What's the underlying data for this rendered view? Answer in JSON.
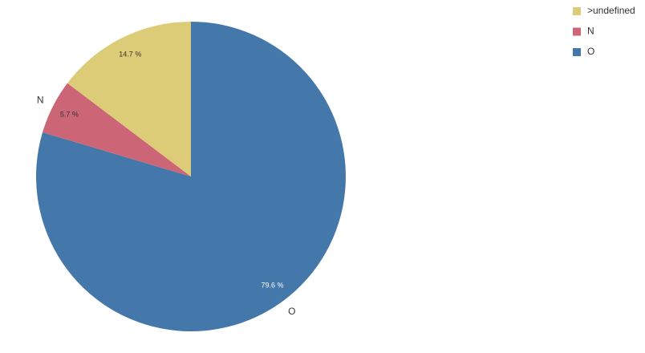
{
  "chart_data": {
    "type": "pie",
    "categories": [
      ">undefined",
      "N",
      "O"
    ],
    "values": [
      14.7,
      5.7,
      79.6
    ],
    "value_labels": [
      "14.7 %",
      "5.7 %",
      "79.6 %"
    ],
    "colors": [
      "#ddcc77",
      "#cc6677",
      "#4477aa"
    ],
    "legend": "top-right"
  }
}
